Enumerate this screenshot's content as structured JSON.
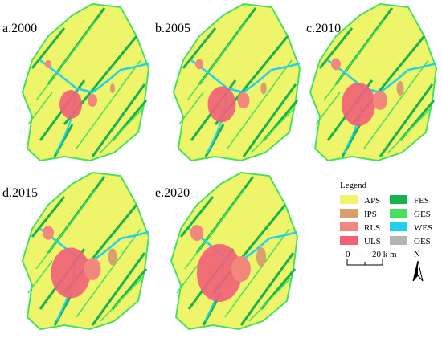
{
  "panels": [
    "a.2000",
    "b.2005",
    "c.2010",
    "d.2015",
    "e.2020"
  ],
  "legend": {
    "title": "Legend",
    "items": [
      {
        "label": "APS",
        "color": "#eef56a"
      },
      {
        "label": "FES",
        "color": "#16b24e"
      },
      {
        "label": "IPS",
        "color": "#d9a06e"
      },
      {
        "label": "GES",
        "color": "#44e05e"
      },
      {
        "label": "RLS",
        "color": "#f2877e"
      },
      {
        "label": "WES",
        "color": "#1ed2ef"
      },
      {
        "label": "ULS",
        "color": "#f25f78"
      },
      {
        "label": "OES",
        "color": "#b4b4b4"
      }
    ]
  },
  "scale_bar": {
    "start": "0",
    "end": "20 k m"
  },
  "north": "N"
}
